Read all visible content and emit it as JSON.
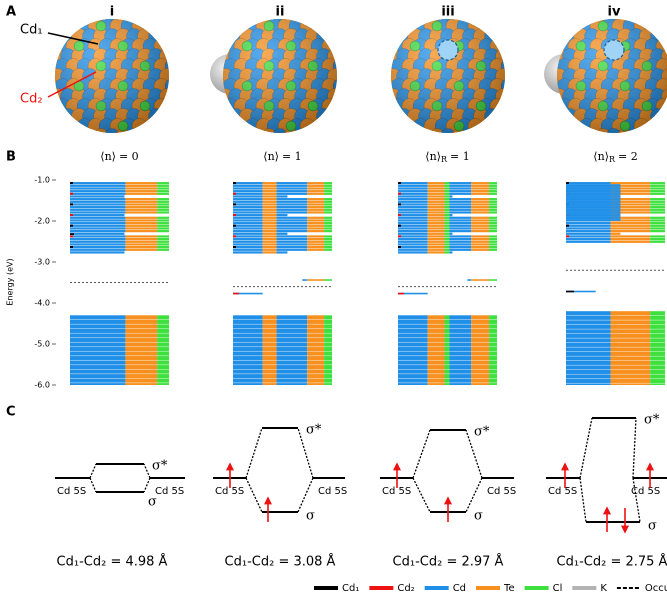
{
  "panel_labels": [
    "A",
    "B",
    "C"
  ],
  "columns": [
    "i",
    "ii",
    "iii",
    "iv"
  ],
  "atom_labels": [
    "Cd₁",
    "Cd₂"
  ],
  "occupancy": [
    {
      "symbol": "⟨n⟩",
      "rhs": "= 0"
    },
    {
      "symbol": "⟨n⟩",
      "rhs": "= 1"
    },
    {
      "symbol": "⟨n⟩",
      "sub": "R",
      "rhs": "= 1"
    },
    {
      "symbol": "⟨n⟩",
      "sub": "R",
      "rhs": "= 2"
    }
  ],
  "energy_axis": {
    "label": "Energy (eV)",
    "ylim": [
      -1,
      -6
    ],
    "yticks": [
      {
        "value": -1,
        "label": "-1.0"
      },
      {
        "value": -2,
        "label": "-2.0"
      },
      {
        "value": -3,
        "label": "-3.0"
      },
      {
        "value": -4,
        "label": "-4.0"
      },
      {
        "value": -5,
        "label": "-5.0"
      },
      {
        "value": -6,
        "label": "-6.0"
      }
    ]
  },
  "occupied_levels": [
    -3.5,
    -3.6,
    -3.6,
    -3.2
  ],
  "orbital_labels": {
    "antibonding": "σ*",
    "bonding": "σ",
    "atomic": "Cd 5S"
  },
  "distances": [
    "Cd₁-Cd₂ = 4.98 Å",
    "Cd₁-Cd₂ = 3.08 Å",
    "Cd₁-Cd₂ = 2.97 Å",
    "Cd₁-Cd₂ = 2.75 Å"
  ],
  "legend": [
    {
      "name": "Cd₁",
      "color": "#000000"
    },
    {
      "name": "Cd₂",
      "color": "#ee1111"
    },
    {
      "name": "Cd",
      "color": "#1f8fe8"
    },
    {
      "name": "Te",
      "color": "#f7901e"
    },
    {
      "name": "Cl",
      "color": "#3ee03e"
    },
    {
      "name": "K",
      "color": "#b3b3b3"
    },
    {
      "name": "Occupied levels",
      "color": "#000000",
      "style": "dashed"
    }
  ]
}
